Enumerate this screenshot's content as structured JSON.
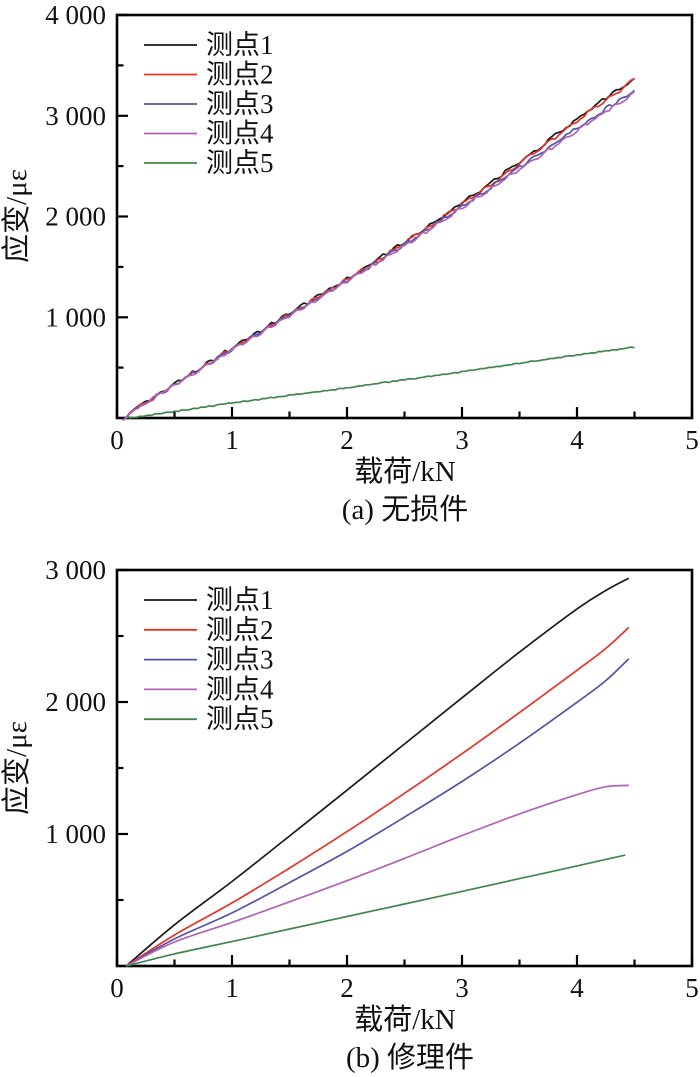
{
  "figure": {
    "background": "#ffffff",
    "panel_count": 2
  },
  "chart_data": [
    {
      "type": "line",
      "panel": "a",
      "caption": "(a) 无损件",
      "xlabel": "载荷/kN",
      "ylabel": "应变/με",
      "xlim": [
        0,
        5
      ],
      "ylim": [
        0,
        4000
      ],
      "grid": "off",
      "legend_position": "upper-left-inside",
      "x_ticks": [
        {
          "v": 0,
          "label": "0"
        },
        {
          "v": 1,
          "label": "1"
        },
        {
          "v": 2,
          "label": "2"
        },
        {
          "v": 3,
          "label": "3"
        },
        {
          "v": 4,
          "label": "4"
        },
        {
          "v": 5,
          "label": "5"
        }
      ],
      "x_minor": [
        0.5,
        1.5,
        2.5,
        3.5,
        4.5
      ],
      "y_ticks": [
        {
          "v": 1000,
          "label": "1 000"
        },
        {
          "v": 2000,
          "label": "2 000"
        },
        {
          "v": 3000,
          "label": "3 000"
        },
        {
          "v": 4000,
          "label": "4 000"
        }
      ],
      "y_minor": [
        500,
        1500,
        2500,
        3500
      ],
      "series": [
        {
          "name": "测点1",
          "color": "#1a1a1a",
          "noise": 10,
          "points": [
            [
              0.05,
              0
            ],
            [
              0.25,
              165
            ],
            [
              0.5,
              345
            ],
            [
              0.75,
              525
            ],
            [
              1,
              705
            ],
            [
              1.25,
              878
            ],
            [
              1.5,
              1048
            ],
            [
              1.75,
              1218
            ],
            [
              2,
              1392
            ],
            [
              2.25,
              1572
            ],
            [
              2.5,
              1757
            ],
            [
              2.75,
              1947
            ],
            [
              3,
              2143
            ],
            [
              3.25,
              2345
            ],
            [
              3.5,
              2552
            ],
            [
              3.75,
              2762
            ],
            [
              4,
              2978
            ],
            [
              4.25,
              3185
            ],
            [
              4.4,
              3300
            ],
            [
              4.5,
              3400
            ]
          ]
        },
        {
          "name": "测点2",
          "color": "#e43428",
          "noise": 10,
          "points": [
            [
              0.05,
              0
            ],
            [
              0.25,
              162
            ],
            [
              0.5,
              340
            ],
            [
              0.75,
              520
            ],
            [
              1,
              698
            ],
            [
              1.25,
              870
            ],
            [
              1.5,
              1040
            ],
            [
              1.75,
              1210
            ],
            [
              2,
              1383
            ],
            [
              2.25,
              1562
            ],
            [
              2.5,
              1747
            ],
            [
              2.75,
              1936
            ],
            [
              3,
              2130
            ],
            [
              3.25,
              2330
            ],
            [
              3.5,
              2535
            ],
            [
              3.75,
              2745
            ],
            [
              4,
              2958
            ],
            [
              4.25,
              3165
            ],
            [
              4.4,
              3280
            ],
            [
              4.5,
              3378
            ]
          ]
        },
        {
          "name": "测点3",
          "color": "#4f55a7",
          "noise": 9,
          "points": [
            [
              0.05,
              0
            ],
            [
              0.25,
              160
            ],
            [
              0.5,
              336
            ],
            [
              0.75,
              515
            ],
            [
              1,
              692
            ],
            [
              1.25,
              862
            ],
            [
              1.5,
              1032
            ],
            [
              1.75,
              1200
            ],
            [
              2,
              1372
            ],
            [
              2.25,
              1548
            ],
            [
              2.5,
              1730
            ],
            [
              2.75,
              1915
            ],
            [
              3,
              2108
            ],
            [
              3.25,
              2300
            ],
            [
              3.5,
              2498
            ],
            [
              3.75,
              2688
            ],
            [
              4,
              2885
            ],
            [
              4.25,
              3078
            ],
            [
              4.4,
              3185
            ],
            [
              4.5,
              3268
            ]
          ]
        },
        {
          "name": "测点4",
          "color": "#b263b2",
          "noise": 9,
          "points": [
            [
              0.05,
              0
            ],
            [
              0.25,
              158
            ],
            [
              0.5,
              333
            ],
            [
              0.75,
              511
            ],
            [
              1,
              687
            ],
            [
              1.25,
              857
            ],
            [
              1.5,
              1026
            ],
            [
              1.75,
              1194
            ],
            [
              2,
              1365
            ],
            [
              2.25,
              1540
            ],
            [
              2.5,
              1720
            ],
            [
              2.75,
              1903
            ],
            [
              3,
              2094
            ],
            [
              3.25,
              2285
            ],
            [
              3.5,
              2480
            ],
            [
              3.75,
              2668
            ],
            [
              4,
              2862
            ],
            [
              4.25,
              3052
            ],
            [
              4.4,
              3158
            ],
            [
              4.5,
              3242
            ]
          ]
        },
        {
          "name": "测点5",
          "color": "#41874b",
          "noise": 3,
          "points": [
            [
              0.1,
              0
            ],
            [
              0.5,
              68
            ],
            [
              1,
              152
            ],
            [
              1.5,
              228
            ],
            [
              2,
              302
            ],
            [
              2.5,
              382
            ],
            [
              3,
              462
            ],
            [
              3.5,
              546
            ],
            [
              4,
              628
            ],
            [
              4.25,
              668
            ],
            [
              4.5,
              706
            ]
          ]
        }
      ]
    },
    {
      "type": "line",
      "panel": "b",
      "caption": "(b) 修理件",
      "xlabel": "载荷/kN",
      "ylabel": "应变/με",
      "xlim": [
        0,
        5
      ],
      "ylim": [
        0,
        3000
      ],
      "grid": "off",
      "legend_position": "upper-left-inside",
      "x_ticks": [
        {
          "v": 0,
          "label": "0"
        },
        {
          "v": 1,
          "label": "1"
        },
        {
          "v": 2,
          "label": "2"
        },
        {
          "v": 3,
          "label": "3"
        },
        {
          "v": 4,
          "label": "4"
        },
        {
          "v": 5,
          "label": "5"
        }
      ],
      "x_minor": [
        0.5,
        1.5,
        2.5,
        3.5,
        4.5
      ],
      "y_ticks": [
        {
          "v": 1000,
          "label": "1 000"
        },
        {
          "v": 2000,
          "label": "2 000"
        },
        {
          "v": 3000,
          "label": "3 000"
        }
      ],
      "y_minor": [
        500,
        1500,
        2500
      ],
      "series": [
        {
          "name": "测点1",
          "color": "#1a1a1a",
          "noise": 0,
          "points": [
            [
              0.08,
              0
            ],
            [
              0.5,
              312
            ],
            [
              1,
              640
            ],
            [
              1.5,
              985
            ],
            [
              2,
              1332
            ],
            [
              2.5,
              1682
            ],
            [
              3,
              2032
            ],
            [
              3.5,
              2378
            ],
            [
              4,
              2705
            ],
            [
              4.25,
              2845
            ],
            [
              4.45,
              2938
            ]
          ]
        },
        {
          "name": "测点2",
          "color": "#e43428",
          "noise": 0,
          "points": [
            [
              0.08,
              0
            ],
            [
              0.5,
              235
            ],
            [
              1,
              478
            ],
            [
              1.5,
              742
            ],
            [
              2,
              1018
            ],
            [
              2.5,
              1308
            ],
            [
              3,
              1608
            ],
            [
              3.5,
              1920
            ],
            [
              4,
              2240
            ],
            [
              4.25,
              2405
            ],
            [
              4.45,
              2565
            ]
          ]
        },
        {
          "name": "测点3",
          "color": "#4f55a7",
          "noise": 0,
          "points": [
            [
              0.08,
              0
            ],
            [
              0.5,
              205
            ],
            [
              1,
              402
            ],
            [
              1.5,
              632
            ],
            [
              2,
              868
            ],
            [
              2.5,
              1128
            ],
            [
              3,
              1398
            ],
            [
              3.5,
              1688
            ],
            [
              4,
              1998
            ],
            [
              4.25,
              2162
            ],
            [
              4.45,
              2328
            ]
          ]
        },
        {
          "name": "测点4",
          "color": "#b263b2",
          "noise": 0,
          "points": [
            [
              0.08,
              0
            ],
            [
              0.5,
              182
            ],
            [
              1,
              330
            ],
            [
              1.5,
              486
            ],
            [
              2,
              646
            ],
            [
              2.5,
              815
            ],
            [
              3,
              988
            ],
            [
              3.5,
              1152
            ],
            [
              4,
              1298
            ],
            [
              4.25,
              1358
            ],
            [
              4.45,
              1368
            ]
          ]
        },
        {
          "name": "测点5",
          "color": "#41874b",
          "noise": 0,
          "points": [
            [
              0.08,
              0
            ],
            [
              0.5,
              92
            ],
            [
              1,
              185
            ],
            [
              1.5,
              280
            ],
            [
              2,
              375
            ],
            [
              2.5,
              470
            ],
            [
              3,
              565
            ],
            [
              3.5,
              662
            ],
            [
              4,
              758
            ],
            [
              4.42,
              840
            ]
          ]
        }
      ]
    }
  ]
}
